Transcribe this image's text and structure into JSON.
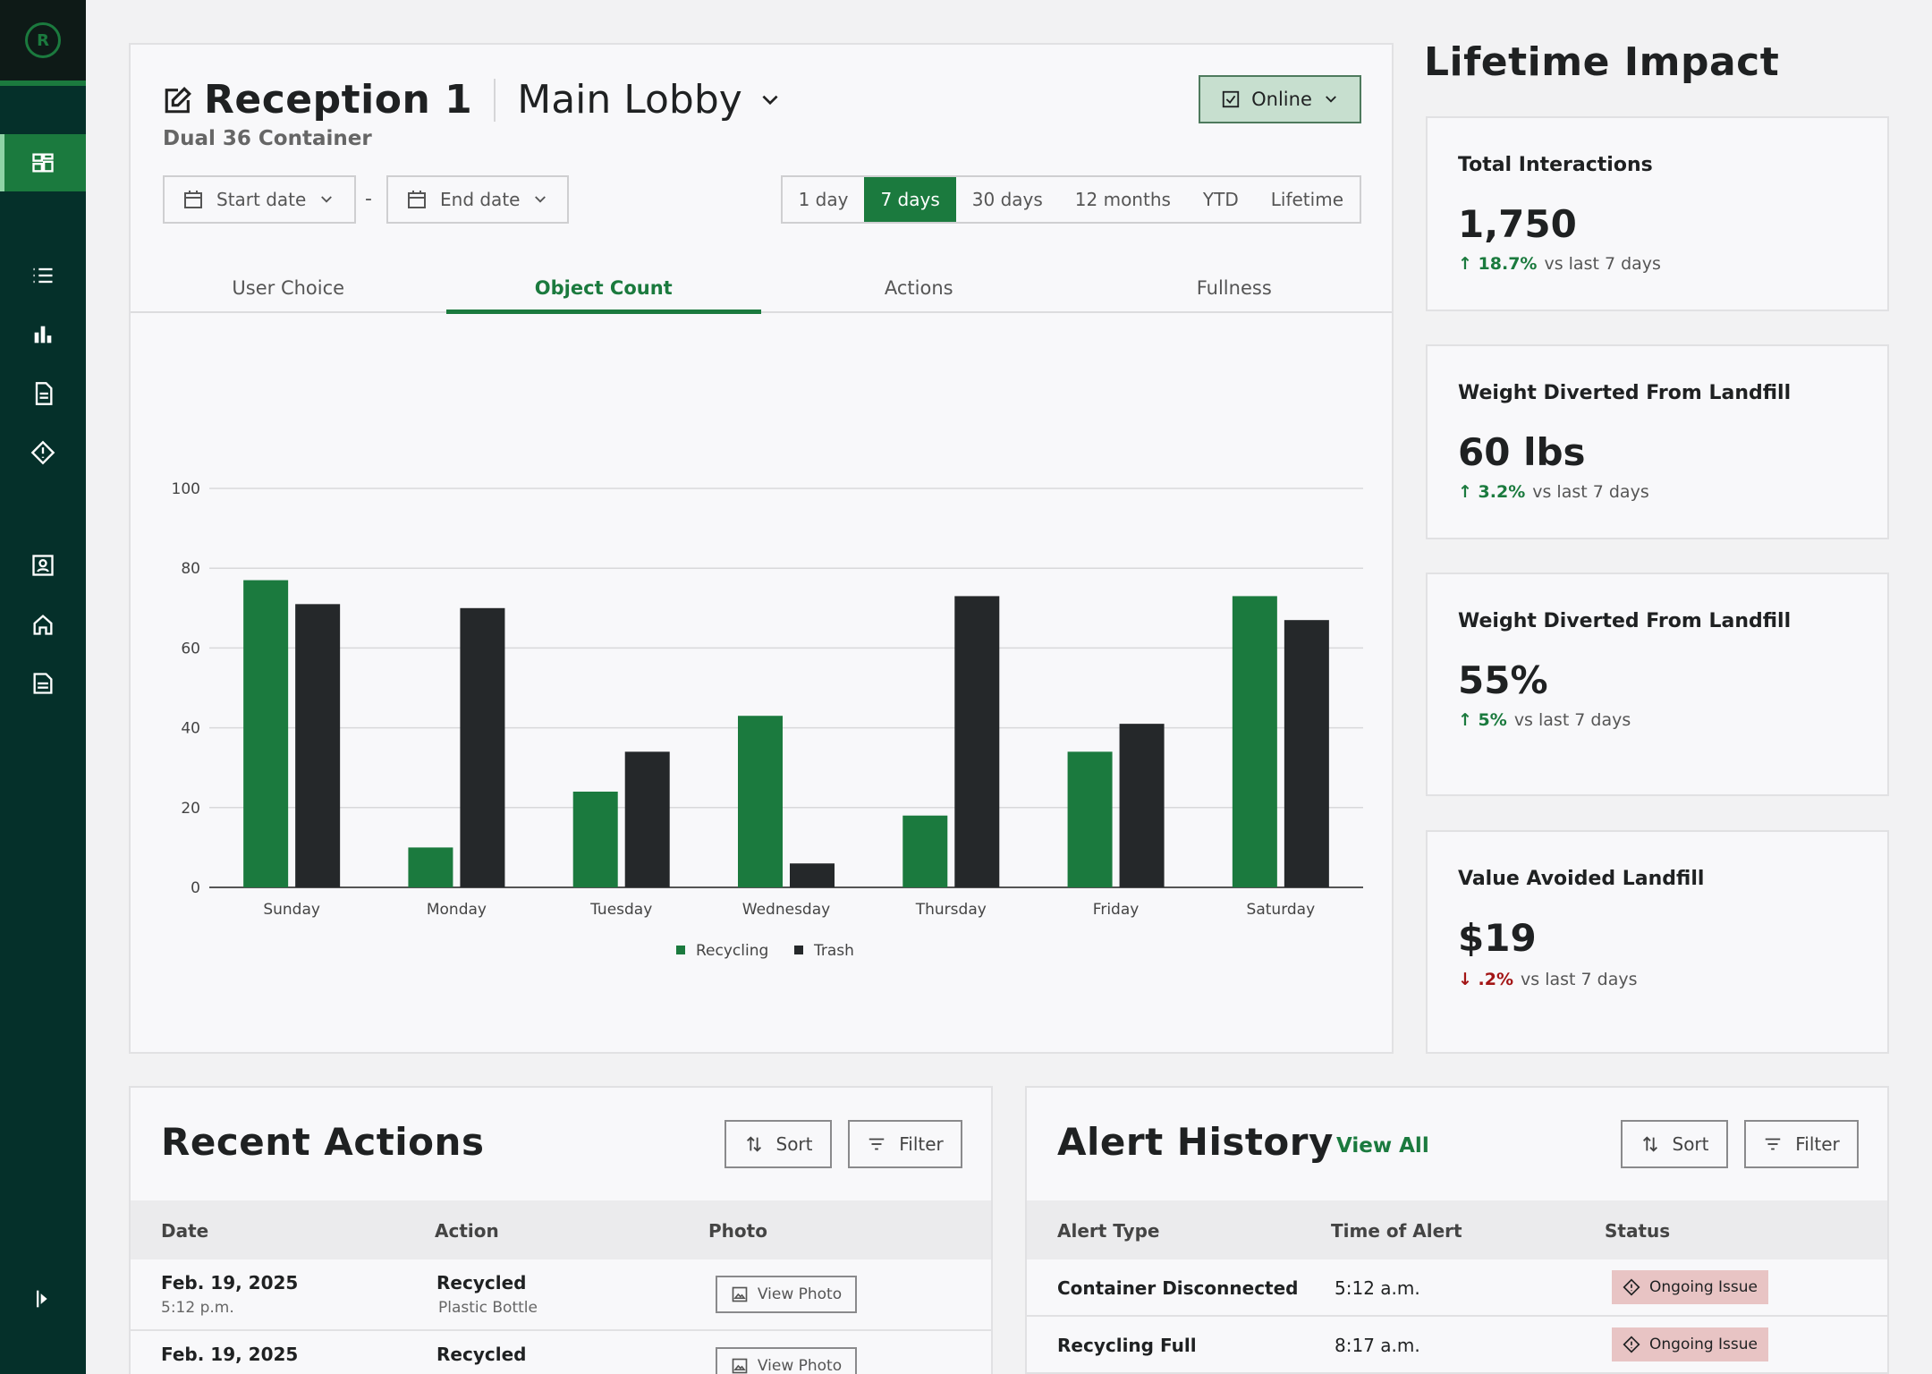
{
  "brand": {
    "logo_letter": "R"
  },
  "header": {
    "title": "Reception 1",
    "location": "Main Lobby",
    "subtitle": "Dual 36 Container",
    "status_label": "Online"
  },
  "date_filters": {
    "start_label": "Start date",
    "end_label": "End date",
    "dash": "-",
    "ranges": [
      "1 day",
      "7 days",
      "30 days",
      "12 months",
      "YTD",
      "Lifetime"
    ],
    "active_range": "7 days"
  },
  "tabs": [
    "User Choice",
    "Object Count",
    "Actions",
    "Fullness"
  ],
  "active_tab": "Object Count",
  "chart_data": {
    "type": "bar",
    "categories": [
      "Sunday",
      "Monday",
      "Tuesday",
      "Wednesday",
      "Thursday",
      "Friday",
      "Saturday"
    ],
    "series": [
      {
        "name": "Recycling",
        "values": [
          77,
          10,
          24,
          43,
          18,
          34,
          73
        ],
        "color": "#1b7a3e"
      },
      {
        "name": "Trash",
        "values": [
          71,
          70,
          34,
          6,
          73,
          41,
          67
        ],
        "color": "#25282a"
      }
    ],
    "ylim": [
      0,
      100
    ],
    "yticks": [
      0,
      20,
      40,
      60,
      80,
      100
    ],
    "grid": true,
    "legend": "bottom-center"
  },
  "lifetime": {
    "title": "Lifetime Impact",
    "cards": [
      {
        "label": "Total Interactions",
        "value": "1,750",
        "change": "18.7%",
        "direction": "up",
        "suffix": "vs last 7 days"
      },
      {
        "label": "Weight Diverted From Landfill",
        "value": "60 lbs",
        "change": "3.2%",
        "direction": "up",
        "suffix": "vs last 7 days"
      },
      {
        "label": "Weight Diverted From Landfill",
        "value": "55%",
        "change": "5%",
        "direction": "up",
        "suffix": "vs last 7 days"
      },
      {
        "label": "Value Avoided Landfill",
        "value": "$19",
        "change": ".2%",
        "direction": "down",
        "suffix": "vs last 7 days"
      }
    ]
  },
  "recent_actions": {
    "title": "Recent Actions",
    "sort_label": "Sort",
    "filter_label": "Filter",
    "columns": [
      "Date",
      "Action",
      "Photo"
    ],
    "rows": [
      {
        "date": "Feb. 19, 2025",
        "time": "5:12 p.m.",
        "action": "Recycled",
        "item": "Plastic Bottle",
        "photo": "View Photo"
      },
      {
        "date": "Feb. 19, 2025",
        "time": "",
        "action": "Recycled",
        "item": "",
        "photo": "View Photo"
      }
    ]
  },
  "alert_history": {
    "title": "Alert History",
    "view_all": "View All",
    "sort_label": "Sort",
    "filter_label": "Filter",
    "columns": [
      "Alert Type",
      "Time of Alert",
      "Status"
    ],
    "rows": [
      {
        "type": "Container Disconnected",
        "time": "5:12 a.m.",
        "status": "Ongoing Issue"
      },
      {
        "type": "Recycling Full",
        "time": "8:17 a.m.",
        "status": "Ongoing Issue"
      }
    ]
  },
  "colors": {
    "brand_green": "#1b7a3e",
    "sidebar": "#05302a",
    "trash": "#25282a",
    "alert": "#e8c4c4"
  }
}
